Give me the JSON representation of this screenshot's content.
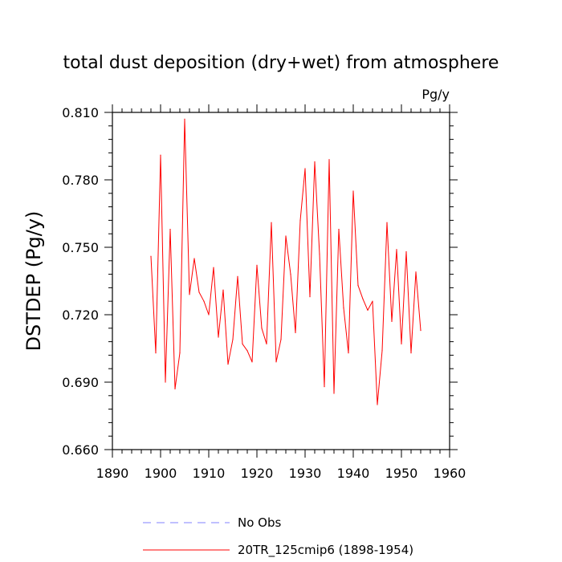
{
  "chart_data": {
    "type": "line",
    "title": "total dust deposition (dry+wet) from atmosphere",
    "units": "Pg/y",
    "ylabel": "DSTDEP  (Pg/y)",
    "xlabel": "",
    "xlim": [
      1890,
      1960
    ],
    "ylim": [
      0.66,
      0.81
    ],
    "xticks": [
      "1890",
      "1900",
      "1910",
      "1920",
      "1930",
      "1940",
      "1950",
      "1960"
    ],
    "yticks": [
      "0.660",
      "0.690",
      "0.720",
      "0.750",
      "0.780",
      "0.810"
    ],
    "series": [
      {
        "name": "20TR_125cmip6 (1898-1954)",
        "color": "#ff0000",
        "dash": "solid",
        "x": [
          1898,
          1899,
          1900,
          1901,
          1902,
          1903,
          1904,
          1905,
          1906,
          1907,
          1908,
          1909,
          1910,
          1911,
          1912,
          1913,
          1914,
          1915,
          1916,
          1917,
          1918,
          1919,
          1920,
          1921,
          1922,
          1923,
          1924,
          1925,
          1926,
          1927,
          1928,
          1929,
          1930,
          1931,
          1932,
          1933,
          1934,
          1935,
          1936,
          1937,
          1938,
          1939,
          1940,
          1941,
          1942,
          1943,
          1944,
          1945,
          1946,
          1947,
          1948,
          1949,
          1950,
          1951,
          1952,
          1953,
          1954
        ],
        "values": [
          0.746,
          0.703,
          0.791,
          0.69,
          0.758,
          0.687,
          0.703,
          0.807,
          0.729,
          0.745,
          0.73,
          0.726,
          0.72,
          0.741,
          0.71,
          0.731,
          0.698,
          0.709,
          0.737,
          0.707,
          0.704,
          0.699,
          0.742,
          0.714,
          0.707,
          0.761,
          0.699,
          0.709,
          0.755,
          0.738,
          0.712,
          0.762,
          0.785,
          0.728,
          0.788,
          0.747,
          0.688,
          0.789,
          0.685,
          0.758,
          0.723,
          0.703,
          0.775,
          0.733,
          0.727,
          0.722,
          0.726,
          0.68,
          0.704,
          0.761,
          0.717,
          0.749,
          0.707,
          0.748,
          0.703,
          0.739,
          0.713
        ]
      },
      {
        "name": "No Obs",
        "color": "#8080ff",
        "dash": "dashed",
        "x": [],
        "values": []
      }
    ]
  }
}
